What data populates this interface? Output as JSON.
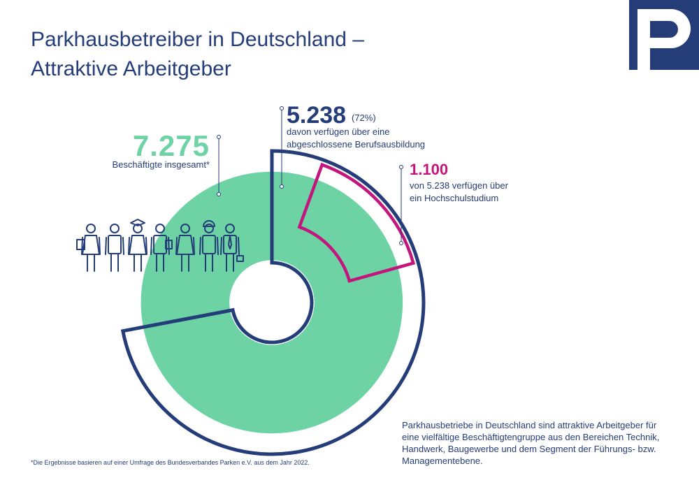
{
  "title": {
    "line1": "Parkhausbetreiber in Deutschland –",
    "line2": "Attraktive Arbeitgeber"
  },
  "colors": {
    "navy": "#243c78",
    "mint": "#6dd3a5",
    "magenta": "#c4157e"
  },
  "stats": {
    "total": {
      "value": "7.275",
      "label": "Beschäftigte insgesamt*"
    },
    "trained": {
      "value": "5.238",
      "percent": "(72%)",
      "line1": "davon verfügen über eine",
      "line2": "abgeschlossene Berufsausbildung"
    },
    "university": {
      "value": "1.100",
      "line1": "von 5.238 verfügen über",
      "line2": "ein Hochschulstudium"
    }
  },
  "description": {
    "line1": "Parkhausbetriebe in Deutschland sind attraktive Arbeitgeber für",
    "line2": "eine vielfältige Beschäftigtengruppe aus den Bereichen Technik,",
    "line3": "Handwerk, Baugewerbe und dem Segment der Führungs- bzw.",
    "line4": "Managementebene."
  },
  "footnote": "*Die Ergebnisse basieren auf einer Umfrage des Bundesverbandes Parken e.V. aus dem Jahr 2022.",
  "icons": [
    "worker-clipboard-icon",
    "worker-icon",
    "graduate-icon",
    "worker-tablet-icon",
    "woman-icon",
    "hardhat-worker-icon",
    "businessman-icon"
  ],
  "chart_data": {
    "type": "pie",
    "style": "donut",
    "total": 7275,
    "series": [
      {
        "label": "Beschäftigte insgesamt*",
        "value": 7275,
        "color": "#6dd3a5"
      },
      {
        "label": "davon verfügen über eine abgeschlossene Berufsausbildung",
        "value": 5238,
        "percent": 72,
        "color": "#243c78"
      },
      {
        "label": "von 5.238 verfügen über ein Hochschulstudium",
        "value": 1100,
        "color": "#c4157e"
      }
    ]
  }
}
